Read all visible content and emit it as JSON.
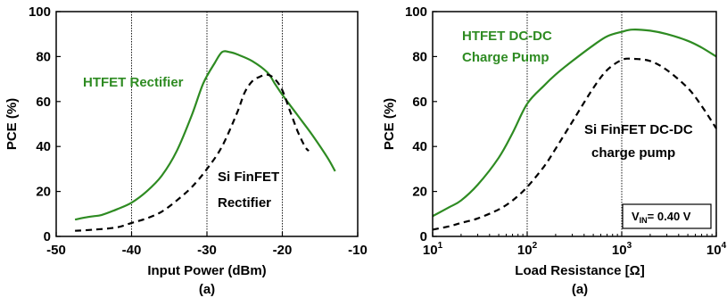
{
  "colors": {
    "htfet": "#2e8b22",
    "sifinfet": "#000000",
    "gridline": "#000000"
  },
  "chart_data": [
    {
      "type": "line",
      "xlabel": "Input Power (dBm)",
      "ylabel": "PCE (%)",
      "caption": "(a)",
      "xlim": [
        -50,
        -10
      ],
      "ylim": [
        0,
        100
      ],
      "xticks": [
        -50,
        -40,
        -30,
        -20,
        -10
      ],
      "xtick_labels": [
        "-50",
        "-40",
        "-30",
        "-20",
        "-10"
      ],
      "yticks": [
        0,
        20,
        40,
        60,
        80,
        100
      ],
      "ytick_labels": [
        "0",
        "20",
        "40",
        "60",
        "80",
        "100"
      ],
      "vlines": [
        -40,
        -30,
        -20
      ],
      "x_scale": "linear",
      "series": [
        {
          "name": "HTFET Rectifier",
          "color": "#2e8b22",
          "style": "solid",
          "x": [
            -47.5,
            -46,
            -45,
            -44,
            -42,
            -40,
            -38,
            -36,
            -34,
            -32,
            -30.5,
            -29,
            -28,
            -27,
            -26,
            -24,
            -22,
            -21,
            -20,
            -18,
            -16,
            -14,
            -13
          ],
          "y": [
            7.5,
            8.5,
            9,
            9.5,
            12,
            15,
            20,
            27,
            38,
            54,
            68,
            77,
            82,
            82,
            81,
            78,
            73,
            68,
            63,
            54,
            45,
            35,
            29
          ]
        },
        {
          "name": "Si FinFET Rectifier",
          "color": "#000000",
          "style": "dashed",
          "x": [
            -47.5,
            -45,
            -42,
            -40,
            -38,
            -36,
            -34,
            -32,
            -30,
            -28,
            -26,
            -25,
            -24,
            -23,
            -22,
            -21,
            -20,
            -19,
            -18,
            -17,
            -16.5
          ],
          "y": [
            2.5,
            3,
            4,
            6,
            8,
            11,
            16,
            22,
            30,
            40,
            55,
            64,
            69,
            71,
            72,
            70,
            65,
            56,
            47,
            40,
            38
          ]
        }
      ],
      "annotations": [
        {
          "text": "HTFET Rectifier",
          "series": "HTFET Rectifier"
        },
        {
          "text": "Si FinFET",
          "series": "Si FinFET Rectifier"
        },
        {
          "text": "Rectifier",
          "series": "Si FinFET Rectifier"
        }
      ]
    },
    {
      "type": "line",
      "xlabel": "Load Resistance [Ω]",
      "ylabel": "PCE (%)",
      "caption": "(a)",
      "x_scale": "log",
      "xlim": [
        10,
        10000
      ],
      "ylim": [
        0,
        100
      ],
      "xticks": [
        10,
        100,
        1000,
        10000
      ],
      "xtick_base": "10",
      "xtick_exps": [
        "1",
        "2",
        "3",
        "4"
      ],
      "yticks": [
        0,
        20,
        40,
        60,
        80,
        100
      ],
      "ytick_labels": [
        "0",
        "20",
        "40",
        "60",
        "80",
        "100"
      ],
      "vlines": [
        100,
        1000
      ],
      "series": [
        {
          "name": "HTFET DC-DC Charge Pump",
          "color": "#2e8b22",
          "style": "solid",
          "x": [
            10,
            15,
            20,
            30,
            50,
            70,
            100,
            150,
            200,
            300,
            500,
            700,
            1000,
            1300,
            2000,
            3000,
            5000,
            7000,
            10000
          ],
          "y": [
            9,
            13,
            16,
            23,
            35,
            46,
            59,
            67,
            72,
            78,
            85,
            89,
            91,
            92,
            91.5,
            90,
            87,
            84,
            80
          ]
        },
        {
          "name": "Si FinFET DC-DC charge pump",
          "color": "#000000",
          "style": "dashed",
          "x": [
            10,
            15,
            20,
            30,
            50,
            70,
            100,
            150,
            200,
            300,
            500,
            700,
            1000,
            1300,
            2000,
            3000,
            5000,
            7000,
            10000
          ],
          "y": [
            3,
            4.5,
            6,
            8,
            12,
            16,
            22,
            31,
            39,
            51,
            66,
            74,
            78.5,
            79,
            78,
            74,
            66,
            58,
            48
          ]
        }
      ],
      "annotations": [
        {
          "text": "HTFET DC-DC",
          "series": "HTFET DC-DC Charge Pump"
        },
        {
          "text": "Charge Pump",
          "series": "HTFET DC-DC Charge Pump"
        },
        {
          "text": "Si FinFET DC-DC",
          "series": "Si FinFET DC-DC charge pump"
        },
        {
          "text": "charge pump",
          "series": "Si FinFET DC-DC charge pump"
        }
      ],
      "vin_box": {
        "v": "V",
        "sub": "IN",
        "rest": "= 0.40 V"
      }
    }
  ]
}
